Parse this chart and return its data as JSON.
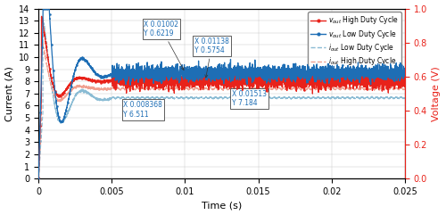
{
  "xlabel": "Time (s)",
  "ylabel_left": "Current (A)",
  "ylabel_right": "Voltage (V)",
  "xlim": [
    0,
    0.025
  ],
  "ylim_left": [
    0,
    14
  ],
  "ylim_right": [
    0,
    1.0
  ],
  "yticks_left": [
    0,
    1,
    2,
    3,
    4,
    5,
    6,
    7,
    8,
    9,
    10,
    11,
    12,
    13,
    14
  ],
  "yticks_right": [
    0,
    0.2,
    0.4,
    0.6,
    0.8,
    1.0
  ],
  "xticks": [
    0,
    0.005,
    0.01,
    0.015,
    0.02,
    0.025
  ],
  "colors": {
    "red": "#e8221a",
    "blue": "#1e6eb5",
    "light_blue": "#8bbcd4",
    "light_red": "#f0a090"
  },
  "v_high_steady": 0.575,
  "v_low_steady": 0.622,
  "i_high_steady": 7.4,
  "i_low_steady": 6.65,
  "ann_color": "#1e6eb5"
}
